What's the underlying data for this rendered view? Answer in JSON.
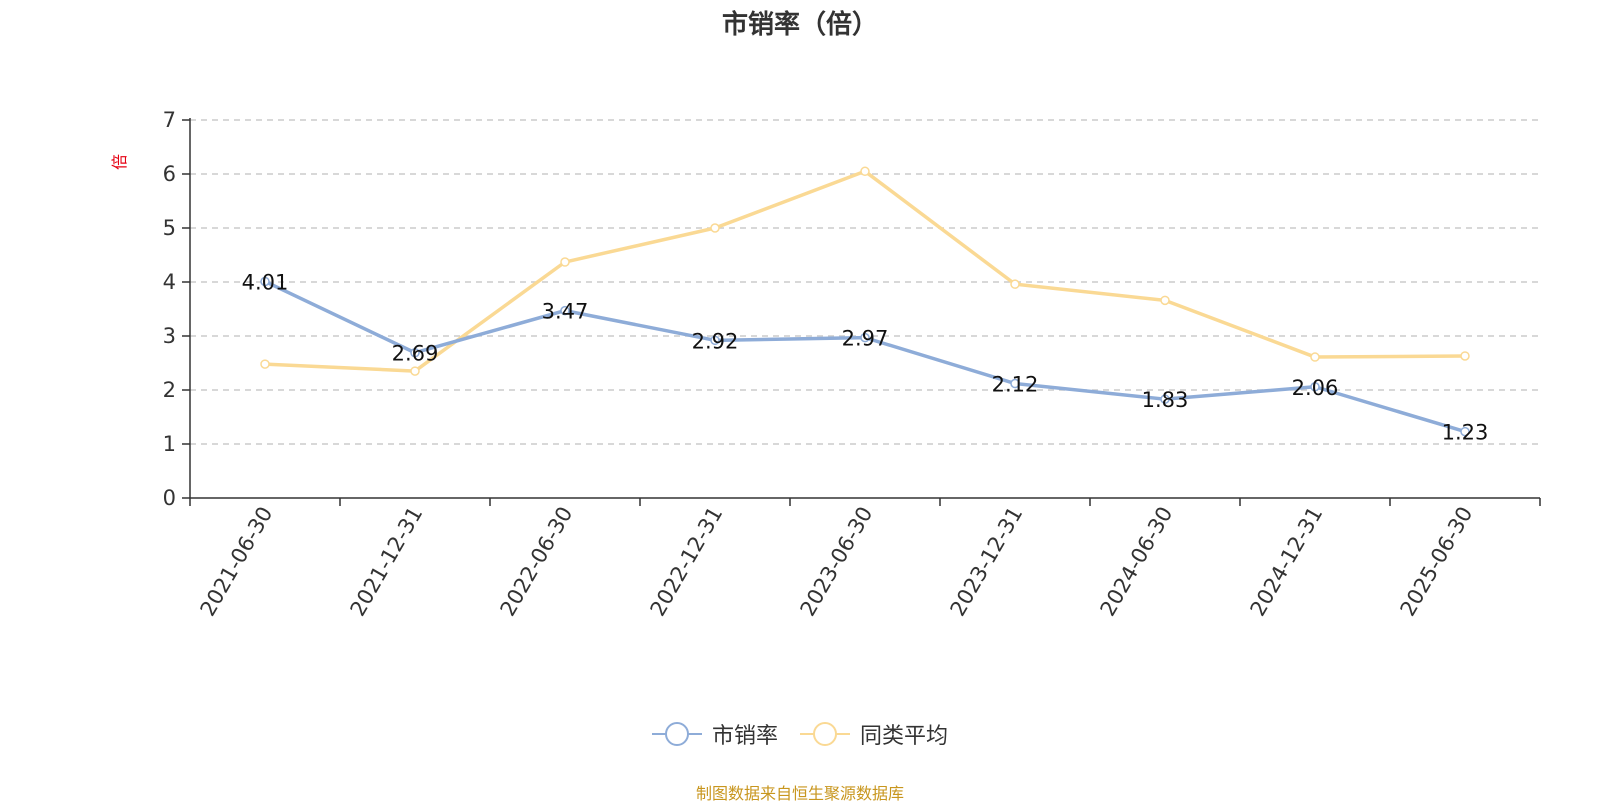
{
  "title": "市销率（倍）",
  "source": "制图数据来自恒生聚源数据库",
  "chart_data": {
    "type": "line",
    "title": "市销率（倍）",
    "ylabel": "倍",
    "xlabel": "",
    "categories": [
      "2021-06-30",
      "2021-12-31",
      "2022-06-30",
      "2022-12-31",
      "2023-06-30",
      "2023-12-31",
      "2024-06-30",
      "2024-12-31",
      "2025-06-30"
    ],
    "ylim": [
      0,
      7
    ],
    "yticks": [
      0,
      1,
      2,
      3,
      4,
      5,
      6,
      7
    ],
    "grid": true,
    "legend_position": "bottom",
    "series": [
      {
        "name": "市销率",
        "color": "#8eacd8",
        "values": [
          4.01,
          2.69,
          3.47,
          2.92,
          2.97,
          2.12,
          1.83,
          2.06,
          1.23
        ],
        "labels": [
          "4.01",
          "2.69",
          "3.47",
          "2.92",
          "2.97",
          "2.12",
          "1.83",
          "2.06",
          "1.23"
        ],
        "show_labels": true
      },
      {
        "name": "同类平均",
        "color": "#fad994",
        "values": [
          2.48,
          2.35,
          4.37,
          5.0,
          6.05,
          3.96,
          3.66,
          2.61,
          2.63
        ],
        "show_labels": false
      }
    ]
  },
  "colors": {
    "axis": "#333333",
    "grid": "#cccccc",
    "ylabel": "#e60012",
    "source": "#c8961e"
  }
}
